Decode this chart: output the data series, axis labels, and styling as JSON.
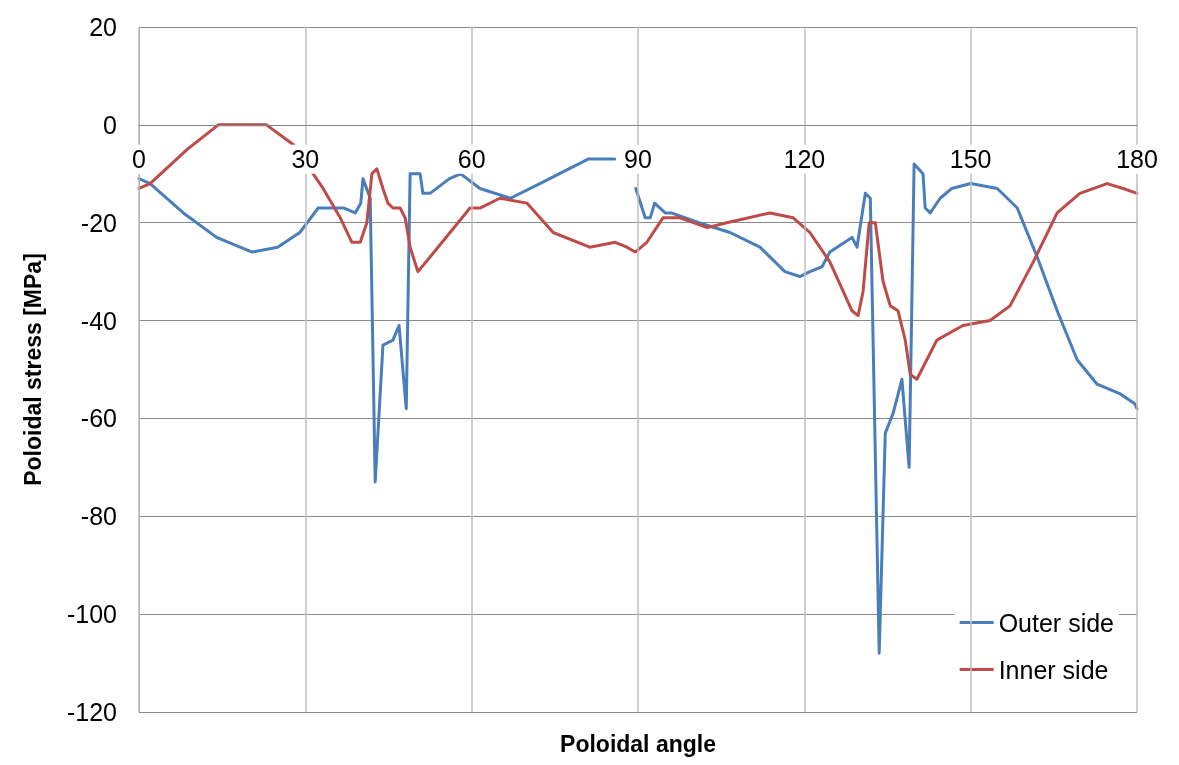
{
  "chart_data": {
    "type": "line",
    "xlabel": "Poloidal angle",
    "ylabel": "Poloidal stress [MPa]",
    "xlim": [
      0,
      180
    ],
    "xticks": [
      0,
      30,
      60,
      90,
      120,
      150,
      180
    ],
    "ylim": [
      -120,
      20
    ],
    "yticks": [
      -120,
      -100,
      -80,
      -60,
      -40,
      -20,
      0,
      20
    ],
    "grid": true,
    "legend": "bottom right",
    "marker": "none",
    "line_style": "solid",
    "series": [
      {
        "name": "Outer side",
        "color": "#4a7ebb",
        "x": [
          0,
          2,
          8,
          14,
          20.4,
          25,
          29,
          32.3,
          37,
          39,
          40,
          40.4,
          41.7,
          42.6,
          44,
          45.8,
          46.9,
          48.2,
          48.9,
          50.7,
          51.2,
          52.5,
          56,
          58,
          61.5,
          67,
          72.3,
          81,
          85.8,
          87.7,
          89.6,
          91.3,
          92.2,
          93,
          94.9,
          96,
          101,
          106.6,
          112,
          116.5,
          119.2,
          121,
          123.2,
          124.6,
          128.6,
          129.5,
          131,
          131.9,
          133.5,
          134.6,
          136,
          137.6,
          138.9,
          139.8,
          141.4,
          141.8,
          142.7,
          144.5,
          146.6,
          150,
          154.8,
          158.4,
          162,
          165.6,
          169.2,
          172.8,
          177,
          179.6,
          180
        ],
        "values": [
          -11,
          -12,
          -18,
          -23,
          -26,
          -25,
          -22,
          -17,
          -17,
          -18,
          -16,
          -11,
          -15,
          -73,
          -45,
          -44,
          -41,
          -58,
          -10,
          -10,
          -14,
          -14,
          -11,
          -10,
          -13,
          -15,
          -12,
          -7,
          -7,
          null,
          -13,
          -19,
          -19,
          -16,
          -18,
          -18,
          -20,
          -22,
          -25,
          -30,
          -31,
          -30,
          -29,
          -26,
          -23,
          -25,
          -14,
          -15,
          -108,
          -63,
          -59,
          -52,
          -70,
          -8,
          -10,
          -17,
          -18,
          -15,
          -13,
          -12,
          -13,
          -17,
          -27,
          -38,
          -48,
          -53,
          -55,
          -57,
          -58
        ]
      },
      {
        "name": "Inner side",
        "color": "#be4b48",
        "x": [
          0,
          2,
          8.7,
          14.3,
          23,
          27.8,
          33.2,
          36.3,
          38.4,
          39.9,
          41.1,
          42,
          42.9,
          44,
          44.9,
          45.8,
          47.1,
          48,
          48.9,
          50.3,
          52.5,
          56.1,
          59.7,
          61.5,
          65.1,
          70,
          74.7,
          81.3,
          85.9,
          88,
          89.5,
          91.6,
          94.5,
          97.6,
          102.5,
          106,
          113.8,
          118,
          121,
          124.6,
          128.6,
          129.7,
          130.6,
          131.7,
          132.8,
          134.2,
          135.5,
          136.9,
          138.2,
          139.1,
          140.3,
          143.9,
          148.6,
          153.5,
          157.1,
          161.3,
          165.6,
          169.7,
          174.6,
          177.5,
          180
        ],
        "values": [
          -13,
          -12,
          -5,
          0,
          0,
          -4,
          -13,
          -19,
          -24,
          -24,
          -20,
          -10,
          -9,
          -13,
          -16,
          -17,
          -17,
          -19,
          -25,
          -30,
          -27,
          -22,
          -17,
          -17,
          -15,
          -16,
          -22,
          -25,
          -24,
          -25,
          -26,
          -24,
          -19,
          -19,
          -21,
          -20,
          -18,
          -19,
          -22,
          -28,
          -38,
          -39,
          -34,
          -20,
          -20,
          -32,
          -37,
          -38,
          -44,
          -51,
          -52,
          -44,
          -41,
          -40,
          -37,
          -28,
          -18,
          -14,
          -12,
          -13,
          -14
        ]
      }
    ]
  }
}
